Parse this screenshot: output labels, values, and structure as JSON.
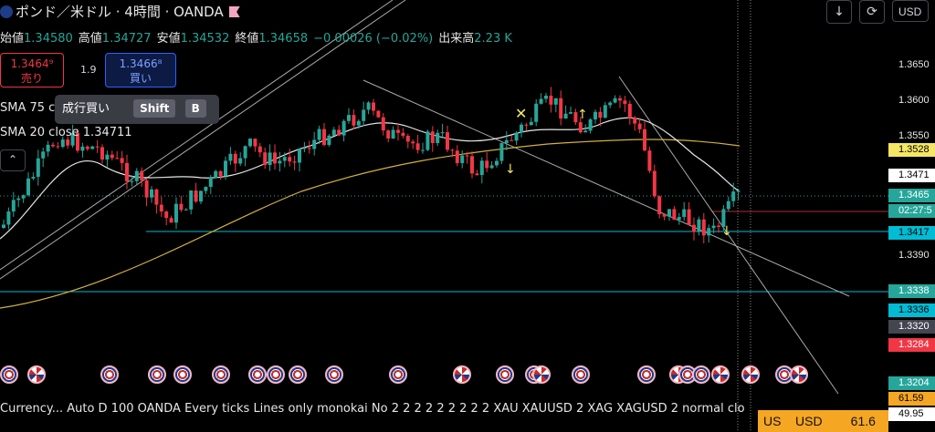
{
  "header": {
    "symbol_title": "ポンド／米ドル · 4時間 · OANDA",
    "ohlc": [
      {
        "label": "始値",
        "value": "1.34580"
      },
      {
        "label": "高値",
        "value": "1.34727"
      },
      {
        "label": "安値",
        "value": "1.34532"
      },
      {
        "label": "終値",
        "value": "1.34658"
      },
      {
        "label": "",
        "value": "−0.00026 (−0.02%)"
      },
      {
        "label": "出来高",
        "value": "2.23 K"
      }
    ],
    "buttons": {
      "down_arrow": "↓",
      "refresh": "⟳",
      "currency": "USD"
    }
  },
  "trade": {
    "sell_price": "1.3464⁹",
    "sell_label": "売り",
    "spread": "1.9",
    "buy_price": "1.3466⁸",
    "buy_label": "買い",
    "tooltip_text": "成行買い",
    "tooltip_key1": "Shift",
    "tooltip_key2": "B"
  },
  "indicators": {
    "sma75": "SMA 75 c",
    "sma20": "SMA 20 close   1.34711",
    "collapse": "⌃"
  },
  "price_axis": {
    "ticks": [
      "1.3650",
      "1.3600",
      "1.3550",
      "1.3390"
    ],
    "labels": [
      {
        "text": "1.3528",
        "bg": "#f5e663",
        "fg": "#000"
      },
      {
        "text": "1.3471",
        "bg": "#ffffff",
        "fg": "#000"
      },
      {
        "text": "1.3465",
        "bg": "#26a69a",
        "fg": "#fff"
      },
      {
        "text": "02:27:5",
        "bg": "#26a69a",
        "fg": "#fff"
      },
      {
        "text": "1.3417",
        "bg": "#00bcd4",
        "fg": "#000"
      },
      {
        "text": "1.3338",
        "bg": "#26a69a",
        "fg": "#fff"
      },
      {
        "text": "1.3336",
        "bg": "#00bcd4",
        "fg": "#000"
      },
      {
        "text": "1.3320",
        "bg": "#434651",
        "fg": "#fff"
      },
      {
        "text": "1.3284",
        "bg": "#f23645",
        "fg": "#fff"
      },
      {
        "text": "1.3204",
        "bg": "#26a69a",
        "fg": "#fff"
      }
    ]
  },
  "bottom": {
    "script_line": "Currency... Auto D 100 OANDA Every ticks Lines only monokai No 2 2 2 2 2 2 2 2 2 XAU XAUUSD 2 XAG XAGUSD 2 normal clo",
    "panel_values": [
      "61.59",
      "49.95"
    ],
    "indicator_strip": "US    USD        61.6"
  },
  "colors": {
    "up": "#26a69a",
    "down": "#f23645",
    "sma20": "#e6e6e6",
    "sma75": "#d4b13a"
  }
}
